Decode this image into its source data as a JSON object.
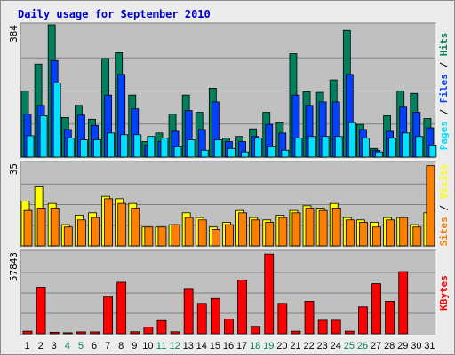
{
  "title": "Daily usage for September 2010",
  "colors": {
    "background": "#ececec",
    "panel": "#c0c0c0",
    "hits": "#00805c",
    "files": "#0040ff",
    "pages": "#00e0ff",
    "visits": "#ffff00",
    "sites": "#ff8000",
    "kbytes": "#ff0000",
    "weekday_label": "#000000",
    "weekend_label": "#00805c"
  },
  "chart_data": [
    {
      "type": "bar",
      "name": "hits-files-pages",
      "ymax_label": "384",
      "ylim": [
        0,
        384
      ],
      "legend": [
        "Pages",
        "Files",
        "Hits"
      ],
      "series": [
        {
          "name": "Hits",
          "values": [
            192,
            270,
            384,
            115,
            150,
            110,
            286,
            303,
            180,
            45,
            70,
            125,
            180,
            130,
            200,
            55,
            60,
            82,
            130,
            100,
            300,
            190,
            188,
            224,
            368,
            95,
            25,
            120,
            192,
            185,
            112
          ]
        },
        {
          "name": "Files",
          "values": [
            125,
            150,
            280,
            80,
            122,
            92,
            180,
            240,
            140,
            35,
            45,
            75,
            135,
            80,
            160,
            45,
            45,
            60,
            95,
            70,
            180,
            150,
            160,
            160,
            240,
            80,
            20,
            75,
            145,
            130,
            85
          ]
        },
        {
          "name": "Pages",
          "values": [
            62,
            120,
            215,
            55,
            50,
            50,
            70,
            65,
            65,
            60,
            55,
            30,
            50,
            20,
            50,
            25,
            15,
            55,
            30,
            20,
            55,
            60,
            60,
            60,
            100,
            55,
            15,
            55,
            70,
            60,
            35
          ]
        }
      ]
    },
    {
      "type": "bar",
      "name": "visits-sites",
      "ymax_label": "35",
      "ylim": [
        0,
        35
      ],
      "legend": [
        "Sites",
        "Visits"
      ],
      "series": [
        {
          "name": "Visits",
          "values": [
            19,
            25,
            18,
            9,
            13,
            14,
            21,
            20,
            18,
            8,
            8,
            9,
            14,
            12,
            8,
            10,
            15,
            12,
            11,
            13,
            15,
            17,
            16,
            18,
            12,
            11,
            10,
            12,
            12,
            9,
            14
          ]
        },
        {
          "name": "Sites",
          "values": [
            15,
            16,
            16,
            8,
            11,
            12,
            20,
            18,
            16,
            8,
            8,
            9,
            12,
            11,
            7,
            9,
            14,
            11,
            10,
            12,
            14,
            16,
            15,
            16,
            11,
            10,
            8,
            11,
            12,
            8,
            34
          ]
        }
      ]
    },
    {
      "type": "bar",
      "name": "kbytes",
      "ymax_label": "57843",
      "ylim": [
        0,
        57843
      ],
      "legend": [
        "KBytes"
      ],
      "series": [
        {
          "name": "KBytes",
          "values": [
            1800,
            33000,
            1000,
            700,
            1300,
            1300,
            26000,
            36500,
            1400,
            4700,
            9300,
            1400,
            31500,
            21500,
            25000,
            10300,
            38000,
            5200,
            56500,
            21500,
            1800,
            23000,
            9500,
            9500,
            1800,
            19000,
            35500,
            23000,
            44000,
            0,
            0
          ]
        }
      ]
    }
  ],
  "days": [
    "1",
    "2",
    "3",
    "4",
    "5",
    "6",
    "7",
    "8",
    "9",
    "10",
    "11",
    "12",
    "13",
    "14",
    "15",
    "16",
    "17",
    "18",
    "19",
    "20",
    "21",
    "22",
    "23",
    "24",
    "25",
    "26",
    "27",
    "28",
    "29",
    "30",
    "31"
  ],
  "weekend_days": [
    "4",
    "5",
    "11",
    "12",
    "18",
    "19",
    "25",
    "26"
  ]
}
